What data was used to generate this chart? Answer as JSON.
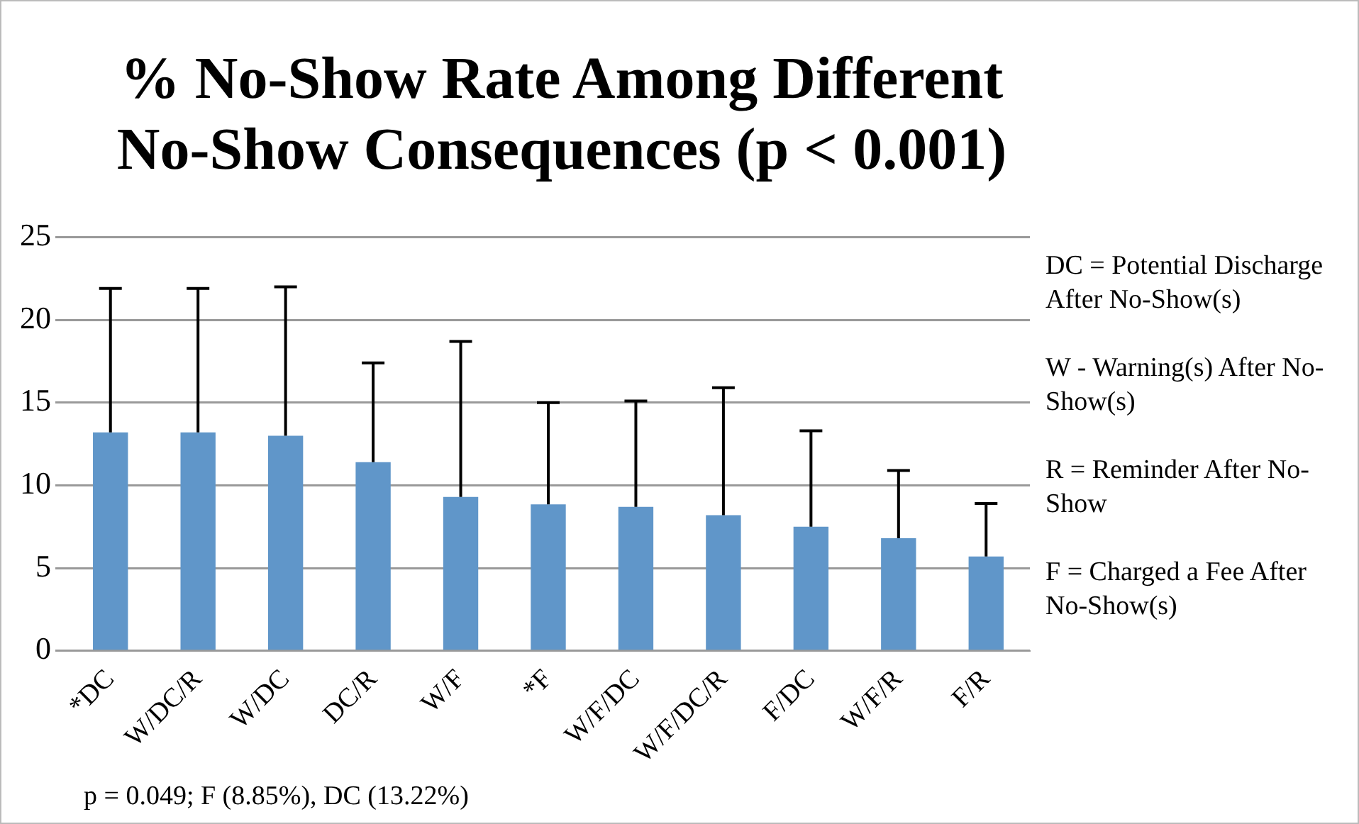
{
  "chart_data": {
    "type": "bar",
    "title": "% No-Show Rate Among Different No-Show Consequences (p < 0.001)",
    "categories": [
      "*DC",
      "W/DC/R",
      "W/DC",
      "DC/R",
      "W/F",
      "*F",
      "W/F/DC",
      "W/F/DC/R",
      "F/DC",
      "W/F/R",
      "F/R"
    ],
    "values": [
      13.2,
      13.2,
      13.0,
      11.4,
      9.3,
      8.85,
      8.7,
      8.2,
      7.5,
      6.8,
      5.7
    ],
    "errors": [
      [
        13.2,
        21.9
      ],
      [
        13.2,
        21.9
      ],
      [
        13.0,
        22.0
      ],
      [
        11.4,
        17.4
      ],
      [
        9.3,
        18.7
      ],
      [
        8.85,
        15.0
      ],
      [
        8.7,
        15.1
      ],
      [
        8.2,
        15.9
      ],
      [
        7.5,
        13.3
      ],
      [
        6.8,
        10.9
      ],
      [
        5.7,
        8.9
      ]
    ],
    "color": "#6096c9",
    "ylim": [
      0,
      25
    ],
    "yticks": [
      0,
      5,
      10,
      15,
      20,
      25
    ],
    "grid": "y",
    "annotations": [
      "DC = Potential Discharge After No-Show(s)",
      "W - Warning(s) After No-Show(s)",
      "R = Reminder After No-Show",
      "F = Charged a Fee After No-Show(s)",
      "p = 0.049; F (8.85%), DC (13.22%)"
    ]
  }
}
